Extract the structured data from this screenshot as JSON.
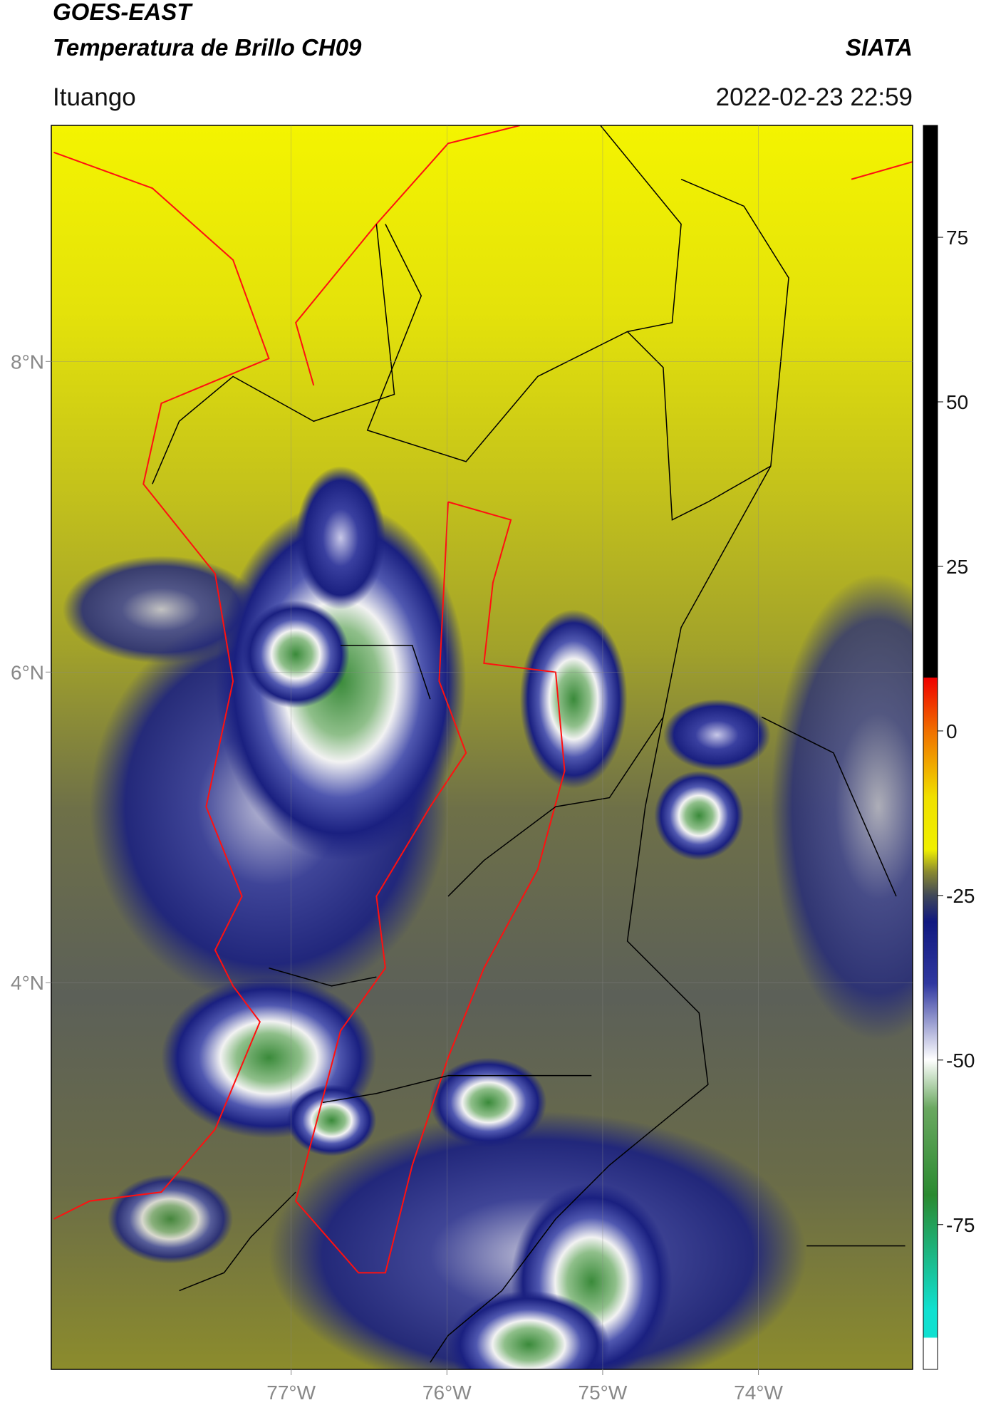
{
  "header": {
    "title_line1": "GOES-EAST",
    "title_line2": "Temperatura de Brillo CH09",
    "org": "SIATA",
    "location": "Ituango",
    "datetime": "2022-02-23 22:59"
  },
  "map": {
    "xlim": [
      -78.54,
      -73.01
    ],
    "ylim": [
      1.51,
      9.52
    ],
    "xticks": [
      {
        "value": -77,
        "label": "77°W"
      },
      {
        "value": -76,
        "label": "76°W"
      },
      {
        "value": -75,
        "label": "75°W"
      },
      {
        "value": -74,
        "label": "74°W"
      }
    ],
    "yticks": [
      {
        "value": 8,
        "label": "8°N"
      },
      {
        "value": 6,
        "label": "6°N"
      },
      {
        "value": 4,
        "label": "4°N"
      }
    ],
    "grid": true
  },
  "colorbar": {
    "lim": [
      -97,
      92
    ],
    "ticks": [
      75,
      50,
      25,
      0,
      -25,
      -50,
      -75
    ]
  }
}
